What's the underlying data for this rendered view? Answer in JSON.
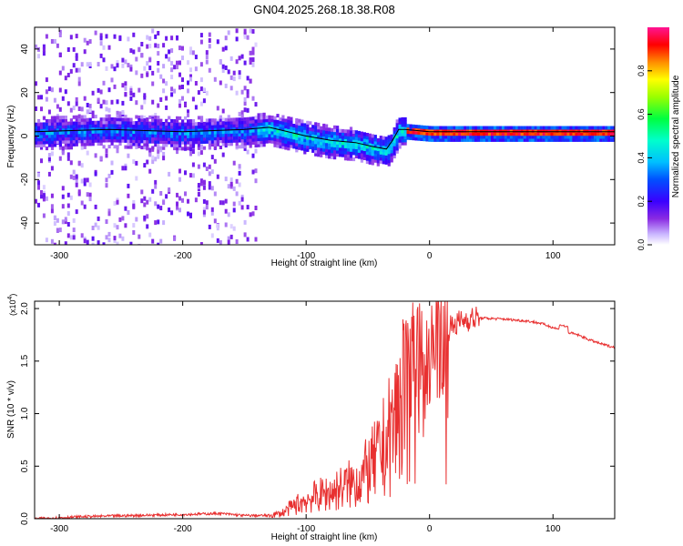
{
  "title": "GN04.2025.268.18.38.R08",
  "colors": {
    "snr_line": "#e83030",
    "track_line": "#000000",
    "colormap": [
      "#ffffff",
      "#c9b5ff",
      "#8a2be2",
      "#5a00ff",
      "#0000ff",
      "#00bfff",
      "#00ffff",
      "#00ff7f",
      "#7fff00",
      "#ffff00",
      "#ff8c00",
      "#ff0000",
      "#ff1493"
    ]
  },
  "chart_data": [
    {
      "type": "heatmap",
      "title": "GN04.2025.268.18.38.R08",
      "xlabel": "Height of straight line (km)",
      "ylabel": "Frequency (Hz)",
      "xlim": [
        -320,
        150
      ],
      "ylim": [
        -50,
        50
      ],
      "xticks": [
        -300,
        -200,
        -100,
        0,
        100
      ],
      "yticks": [
        -40,
        -20,
        0,
        20,
        40
      ],
      "colorbar": {
        "label": "Normalized spectral amplitude",
        "range": [
          0.0,
          1.0
        ],
        "ticks": [
          "0.0",
          "0.2",
          "0.4",
          "0.6",
          "0.8"
        ],
        "tick_values": [
          0.0,
          0.2,
          0.4,
          0.6,
          0.8
        ]
      },
      "frequency_track": {
        "x": [
          -320,
          -260,
          -200,
          -150,
          -130,
          -100,
          -80,
          -60,
          -45,
          -35,
          -30,
          -25,
          -20,
          0,
          50,
          100,
          150
        ],
        "y": [
          2,
          3,
          2,
          3,
          4,
          0,
          -2,
          -3,
          -5,
          -6,
          -2,
          3,
          3,
          2,
          2,
          2,
          2
        ]
      },
      "noise_region": {
        "x_from": -320,
        "x_to": -140
      }
    },
    {
      "type": "line",
      "title": "",
      "xlabel": "Height of straight line (km)",
      "ylabel": "SNR (10 * v/v)",
      "scale_label": "(x10",
      "scale_exponent": "4",
      "scale_close": ")",
      "xlim": [
        -320,
        150
      ],
      "ylim": [
        0,
        2.07
      ],
      "xticks": [
        -300,
        -200,
        -100,
        0,
        100
      ],
      "yticks": [
        "0.0",
        "0.5",
        "1.0",
        "1.5",
        "2.0"
      ],
      "ytick_values": [
        0.0,
        0.5,
        1.0,
        1.5,
        2.0
      ],
      "series": [
        {
          "name": "SNR",
          "x": [
            -320,
            -280,
            -240,
            -200,
            -170,
            -150,
            -130,
            -120,
            -110,
            -100,
            -90,
            -80,
            -70,
            -60,
            -50,
            -40,
            -30,
            -25,
            -20,
            -15,
            -10,
            -5,
            0,
            5,
            10,
            15,
            20,
            30,
            40,
            60,
            80,
            90,
            100,
            110,
            120,
            130,
            140,
            150
          ],
          "y": [
            0.0,
            0.02,
            0.03,
            0.04,
            0.05,
            0.03,
            0.03,
            0.05,
            0.12,
            0.18,
            0.22,
            0.25,
            0.3,
            0.35,
            0.45,
            0.6,
            0.85,
            1.05,
            1.3,
            1.5,
            1.55,
            1.45,
            1.5,
            1.6,
            1.7,
            1.8,
            1.85,
            1.9,
            1.91,
            1.9,
            1.88,
            1.86,
            1.82,
            1.78,
            1.75,
            1.7,
            1.66,
            1.63
          ]
        }
      ]
    }
  ]
}
